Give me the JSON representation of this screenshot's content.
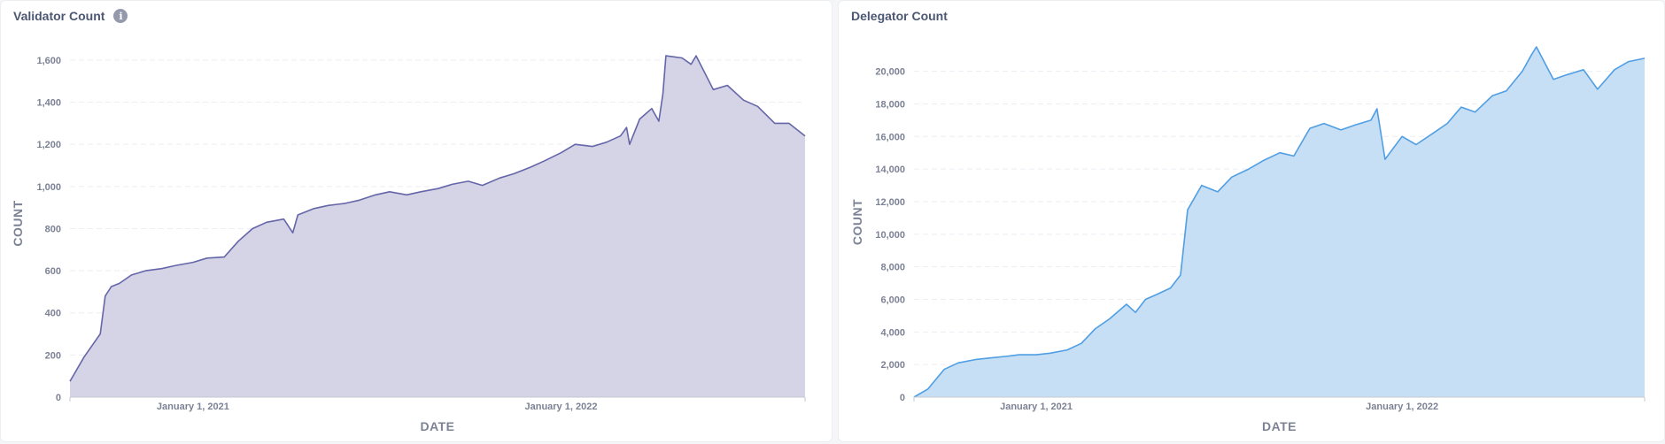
{
  "chart_data": [
    {
      "type": "area",
      "title": "Validator Count",
      "xlabel": "DATE",
      "ylabel": "COUNT",
      "color": "#6466a8",
      "fill": "#d5d3e6",
      "x_range": [
        "2020-09-01",
        "2022-08-31"
      ],
      "ylim": [
        0,
        1650
      ],
      "yticks": [
        0,
        200,
        400,
        600,
        800,
        1000,
        1200,
        1400,
        1600
      ],
      "ytick_labels": [
        "0",
        "200",
        "400",
        "600",
        "800",
        "1,000",
        "1,200",
        "1,400",
        "1,600"
      ],
      "xticks": [
        "2021-01-01",
        "2022-01-01"
      ],
      "xtick_labels": [
        "January 1, 2021",
        "January 1, 2022"
      ],
      "grid": true,
      "x": [
        "2020-09-01",
        "2020-09-15",
        "2020-10-01",
        "2020-10-06",
        "2020-10-12",
        "2020-10-20",
        "2020-11-01",
        "2020-11-15",
        "2020-12-01",
        "2020-12-15",
        "2021-01-01",
        "2021-01-15",
        "2021-02-01",
        "2021-02-15",
        "2021-03-01",
        "2021-03-15",
        "2021-04-01",
        "2021-04-10",
        "2021-04-15",
        "2021-05-01",
        "2021-05-15",
        "2021-06-01",
        "2021-06-15",
        "2021-07-01",
        "2021-07-15",
        "2021-08-01",
        "2021-08-15",
        "2021-09-01",
        "2021-09-15",
        "2021-10-01",
        "2021-10-15",
        "2021-11-01",
        "2021-11-15",
        "2021-12-01",
        "2021-12-15",
        "2022-01-01",
        "2022-01-15",
        "2022-02-01",
        "2022-02-15",
        "2022-03-01",
        "2022-03-07",
        "2022-03-10",
        "2022-03-20",
        "2022-04-01",
        "2022-04-08",
        "2022-04-12",
        "2022-04-15",
        "2022-05-01",
        "2022-05-10",
        "2022-05-15",
        "2022-06-01",
        "2022-06-15",
        "2022-07-01",
        "2022-07-15",
        "2022-08-01",
        "2022-08-15",
        "2022-08-31"
      ],
      "y": [
        75,
        190,
        300,
        480,
        525,
        540,
        580,
        600,
        610,
        625,
        640,
        660,
        665,
        740,
        800,
        830,
        845,
        780,
        865,
        895,
        910,
        920,
        935,
        960,
        975,
        960,
        975,
        990,
        1010,
        1025,
        1005,
        1040,
        1060,
        1090,
        1120,
        1160,
        1200,
        1190,
        1210,
        1240,
        1280,
        1200,
        1320,
        1370,
        1310,
        1440,
        1620,
        1610,
        1580,
        1620,
        1460,
        1480,
        1410,
        1380,
        1300,
        1300,
        1240
      ]
    },
    {
      "type": "area",
      "title": "Delegator Count",
      "xlabel": "DATE",
      "ylabel": "COUNT",
      "color": "#509ee3",
      "fill": "#c7dff4",
      "x_range": [
        "2020-09-01",
        "2022-08-31"
      ],
      "ylim": [
        0,
        21500
      ],
      "yticks": [
        0,
        2000,
        4000,
        6000,
        8000,
        10000,
        12000,
        14000,
        16000,
        18000,
        20000
      ],
      "ytick_labels": [
        "0",
        "2,000",
        "4,000",
        "6,000",
        "8,000",
        "10,000",
        "12,000",
        "14,000",
        "16,000",
        "18,000",
        "20,000"
      ],
      "xticks": [
        "2021-01-01",
        "2022-01-01"
      ],
      "xtick_labels": [
        "January 1, 2021",
        "January 1, 2022"
      ],
      "grid": true,
      "x": [
        "2020-09-01",
        "2020-09-15",
        "2020-10-01",
        "2020-10-15",
        "2020-11-01",
        "2020-11-15",
        "2020-12-01",
        "2020-12-15",
        "2021-01-01",
        "2021-01-15",
        "2021-02-01",
        "2021-02-15",
        "2021-03-01",
        "2021-03-15",
        "2021-04-01",
        "2021-04-10",
        "2021-04-20",
        "2021-05-01",
        "2021-05-15",
        "2021-05-25",
        "2021-06-01",
        "2021-06-15",
        "2021-07-01",
        "2021-07-15",
        "2021-08-01",
        "2021-08-15",
        "2021-09-01",
        "2021-09-15",
        "2021-10-01",
        "2021-10-15",
        "2021-11-01",
        "2021-11-15",
        "2021-12-01",
        "2021-12-07",
        "2021-12-15",
        "2022-01-01",
        "2022-01-15",
        "2022-02-01",
        "2022-02-15",
        "2022-03-01",
        "2022-03-15",
        "2022-04-01",
        "2022-04-15",
        "2022-05-01",
        "2022-05-10",
        "2022-05-15",
        "2022-06-01",
        "2022-06-15",
        "2022-07-01",
        "2022-07-15",
        "2022-08-01",
        "2022-08-15",
        "2022-08-31"
      ],
      "y": [
        0,
        500,
        1700,
        2100,
        2300,
        2400,
        2500,
        2600,
        2600,
        2700,
        2900,
        3300,
        4200,
        4800,
        5700,
        5200,
        6000,
        6300,
        6700,
        7500,
        11500,
        13000,
        12600,
        13500,
        14000,
        14500,
        15000,
        14800,
        16500,
        16800,
        16400,
        16700,
        17000,
        17700,
        14600,
        16000,
        15500,
        16200,
        16800,
        17800,
        17500,
        18500,
        18800,
        20000,
        21000,
        21500,
        19500,
        19800,
        20100,
        18900,
        20100,
        20600,
        20800
      ]
    }
  ]
}
